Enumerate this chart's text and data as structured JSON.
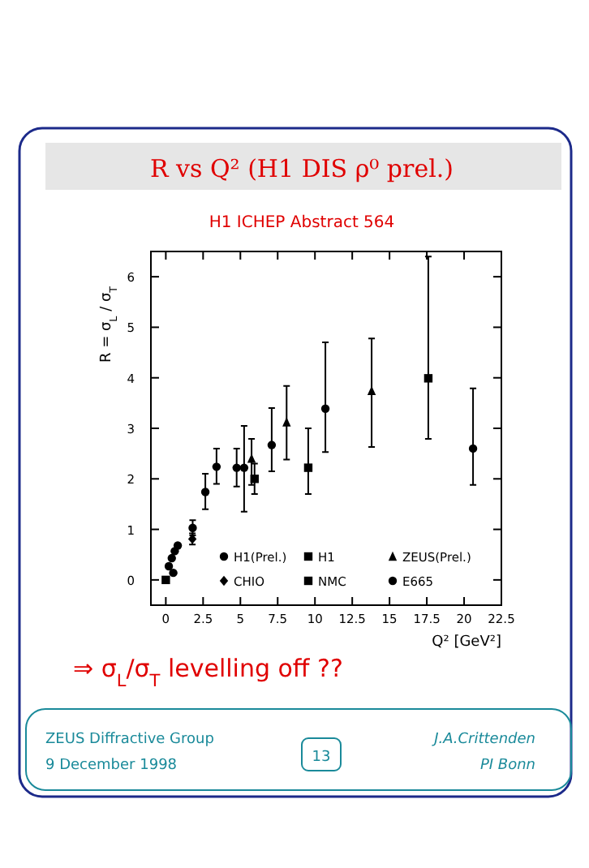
{
  "chart_data": {
    "type": "scatter",
    "title": "R vs Q² (H1 DIS ρ⁰ prel.)",
    "subtitle": "H1 ICHEP Abstract 564",
    "xlabel": "Q² [GeV²]",
    "ylabel": "R = σ$_{L}$ / σ$_{T}$",
    "xlim": [
      -1,
      22.5
    ],
    "ylim": [
      -0.5,
      6.5
    ],
    "xticks": [
      0,
      2.5,
      5,
      7.5,
      10,
      12.5,
      15,
      17.5,
      20,
      22.5
    ],
    "yticks": [
      0,
      1,
      2,
      3,
      4,
      5,
      6
    ],
    "grid": false,
    "legend": "bottom right",
    "series": [
      {
        "name": "H1(Prel.)",
        "color": "#000000",
        "marker": "circle",
        "x": [
          1.8,
          2.65,
          3.4,
          4.75,
          5.25,
          7.1,
          10.7,
          20.6
        ],
        "values": [
          1.03,
          1.74,
          2.24,
          2.22,
          2.22,
          2.67,
          3.39,
          2.6
        ],
        "errors": [
          [
            0.88,
            1.18
          ],
          [
            1.4,
            2.1
          ],
          [
            1.9,
            2.6
          ],
          [
            1.85,
            2.6
          ],
          [
            1.35,
            3.05
          ],
          [
            2.15,
            3.4
          ],
          [
            2.53,
            4.7
          ],
          [
            1.88,
            3.79
          ]
        ]
      },
      {
        "name": "H1",
        "color": "#000000",
        "marker": "square",
        "x": [
          0,
          9.55,
          17.6
        ],
        "values": [
          0,
          2.22,
          3.99
        ],
        "errors": [
          null,
          [
            1.7,
            3.0
          ],
          [
            2.79,
            6.4
          ]
        ]
      },
      {
        "name": "ZEUS(Prel.)",
        "color": "#000000",
        "marker": "triangle",
        "x": [
          5.75,
          8.1,
          13.8
        ],
        "values": [
          2.4,
          3.12,
          3.74
        ],
        "errors": [
          [
            1.88,
            2.79
          ],
          [
            2.38,
            3.84
          ],
          [
            2.63,
            4.78
          ]
        ]
      },
      {
        "name": "CHIO",
        "color": "#000000",
        "marker": "diamond",
        "x": [
          1.78
        ],
        "values": [
          0.81
        ],
        "errors": [
          [
            0.7,
            0.92
          ]
        ]
      },
      {
        "name": "NMC",
        "color": "#000000",
        "marker": "square",
        "x": [
          5.95
        ],
        "values": [
          2.0
        ],
        "errors": [
          [
            1.7,
            2.3
          ]
        ]
      },
      {
        "name": "E665",
        "color": "#000000",
        "marker": "circle",
        "x": [
          0.2,
          0.4,
          0.5,
          0.6,
          0.8
        ],
        "values": [
          0.27,
          0.43,
          0.14,
          0.57,
          0.68
        ]
      }
    ],
    "annotations": [
      "⇒ σ$_{L}$/σ$_{T}$ levelling off ??",
      "ZEUS Diffractive Group",
      "9 December 1998",
      "13",
      "J.A.Crittenden",
      "PI Bonn"
    ]
  }
}
